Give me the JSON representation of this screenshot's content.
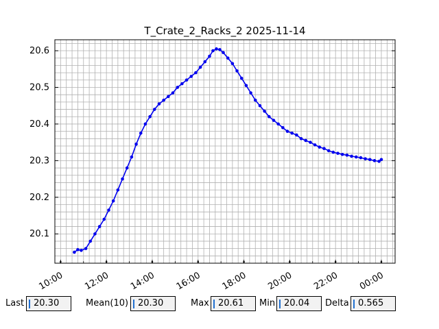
{
  "chart_data": {
    "type": "line",
    "title": "T_Crate_2_Racks_2 2025-11-14",
    "xlabel": "",
    "ylabel": "",
    "x_unit": "hours",
    "xlim": [
      9.75,
      24.6
    ],
    "ylim": [
      20.02,
      20.63
    ],
    "x_ticks": [
      {
        "value": 10,
        "label": "10:00"
      },
      {
        "value": 12,
        "label": "12:00"
      },
      {
        "value": 14,
        "label": "14:00"
      },
      {
        "value": 16,
        "label": "16:00"
      },
      {
        "value": 18,
        "label": "18:00"
      },
      {
        "value": 20,
        "label": "20:00"
      },
      {
        "value": 22,
        "label": "22:00"
      },
      {
        "value": 24,
        "label": "00:00"
      }
    ],
    "y_ticks": [
      {
        "value": 20.1,
        "label": "20.1"
      },
      {
        "value": 20.2,
        "label": "20.2"
      },
      {
        "value": 20.3,
        "label": "20.3"
      },
      {
        "value": 20.4,
        "label": "20.4"
      },
      {
        "value": 20.5,
        "label": "20.5"
      },
      {
        "value": 20.6,
        "label": "20.6"
      }
    ],
    "grid": true,
    "series": [
      {
        "name": "",
        "color": "#0000ee",
        "marker": "circle",
        "x": [
          10.6,
          10.75,
          10.9,
          11.1,
          11.3,
          11.5,
          11.7,
          11.9,
          12.1,
          12.3,
          12.5,
          12.7,
          12.9,
          13.1,
          13.3,
          13.5,
          13.7,
          13.9,
          14.1,
          14.3,
          14.5,
          14.7,
          14.9,
          15.1,
          15.3,
          15.5,
          15.7,
          15.9,
          16.1,
          16.3,
          16.5,
          16.65,
          16.8,
          16.95,
          17.1,
          17.3,
          17.5,
          17.7,
          17.9,
          18.1,
          18.3,
          18.5,
          18.7,
          18.9,
          19.1,
          19.3,
          19.5,
          19.7,
          19.9,
          20.1,
          20.3,
          20.5,
          20.7,
          20.9,
          21.1,
          21.3,
          21.5,
          21.7,
          21.9,
          22.1,
          22.3,
          22.5,
          22.7,
          22.9,
          23.1,
          23.3,
          23.5,
          23.7,
          23.9,
          24.0
        ],
        "y": [
          20.05,
          20.057,
          20.055,
          20.06,
          20.08,
          20.1,
          20.12,
          20.14,
          20.165,
          20.19,
          20.22,
          20.25,
          20.28,
          20.31,
          20.345,
          20.375,
          20.4,
          20.42,
          20.44,
          20.455,
          20.465,
          20.475,
          20.485,
          20.5,
          20.51,
          20.52,
          20.53,
          20.54,
          20.555,
          20.57,
          20.585,
          20.6,
          20.605,
          20.603,
          20.595,
          20.58,
          20.565,
          20.545,
          20.525,
          20.505,
          20.485,
          20.465,
          20.45,
          20.435,
          20.42,
          20.41,
          20.4,
          20.39,
          20.38,
          20.375,
          20.37,
          20.36,
          20.355,
          20.35,
          20.343,
          20.337,
          20.333,
          20.327,
          20.323,
          20.32,
          20.317,
          20.315,
          20.312,
          20.31,
          20.308,
          20.305,
          20.303,
          20.3,
          20.298,
          20.303
        ]
      }
    ]
  },
  "stats": {
    "last_label": "Last",
    "last_value": "20.30",
    "mean_label": "Mean(10)",
    "mean_value": "20.30",
    "max_label": "Max",
    "max_value": "20.61",
    "min_label": "Min",
    "min_value": "20.04",
    "delta_label": "Delta",
    "delta_value": "0.565"
  }
}
